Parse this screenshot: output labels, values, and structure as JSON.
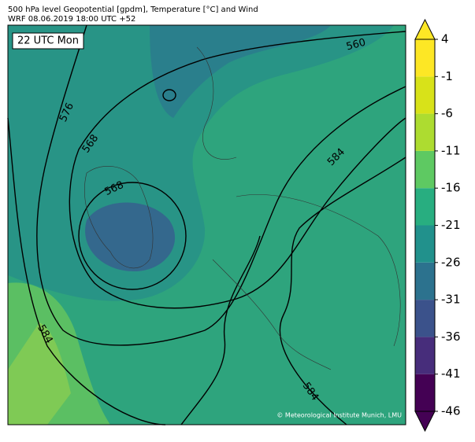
{
  "header": {
    "title": "500 hPa level Geopotential [gpdm], Temperature [°C] and Wind",
    "subtitle": "WRF 08.06.2019 18:00 UTC +52"
  },
  "map": {
    "time_label": "22 UTC Mon",
    "contour_labels": [
      "560",
      "576",
      "568",
      "568",
      "584",
      "584",
      "584"
    ],
    "credit": "© Meteorological Institute Munich, LMU"
  },
  "colorbar": {
    "lim": [
      -46,
      4
    ],
    "ticks": [
      4,
      -1,
      -6,
      -11,
      -16,
      -21,
      -26,
      -31,
      -36,
      -41,
      -46
    ],
    "colors": [
      "#440154",
      "#472d7b",
      "#3b528b",
      "#2c728e",
      "#21918c",
      "#28ae80",
      "#5ec962",
      "#addc30",
      "#d8e219",
      "#fde725"
    ],
    "extend_colors": [
      "#440154",
      "#fde725"
    ]
  }
}
